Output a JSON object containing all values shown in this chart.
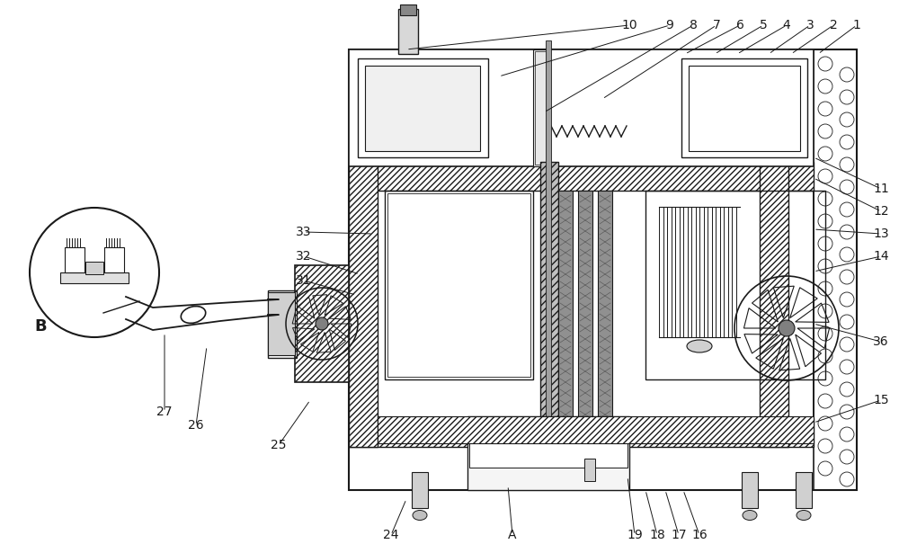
{
  "bg_color": "#ffffff",
  "line_color": "#1a1a1a",
  "fig_w": 10.0,
  "fig_h": 6.15,
  "dpi": 100
}
